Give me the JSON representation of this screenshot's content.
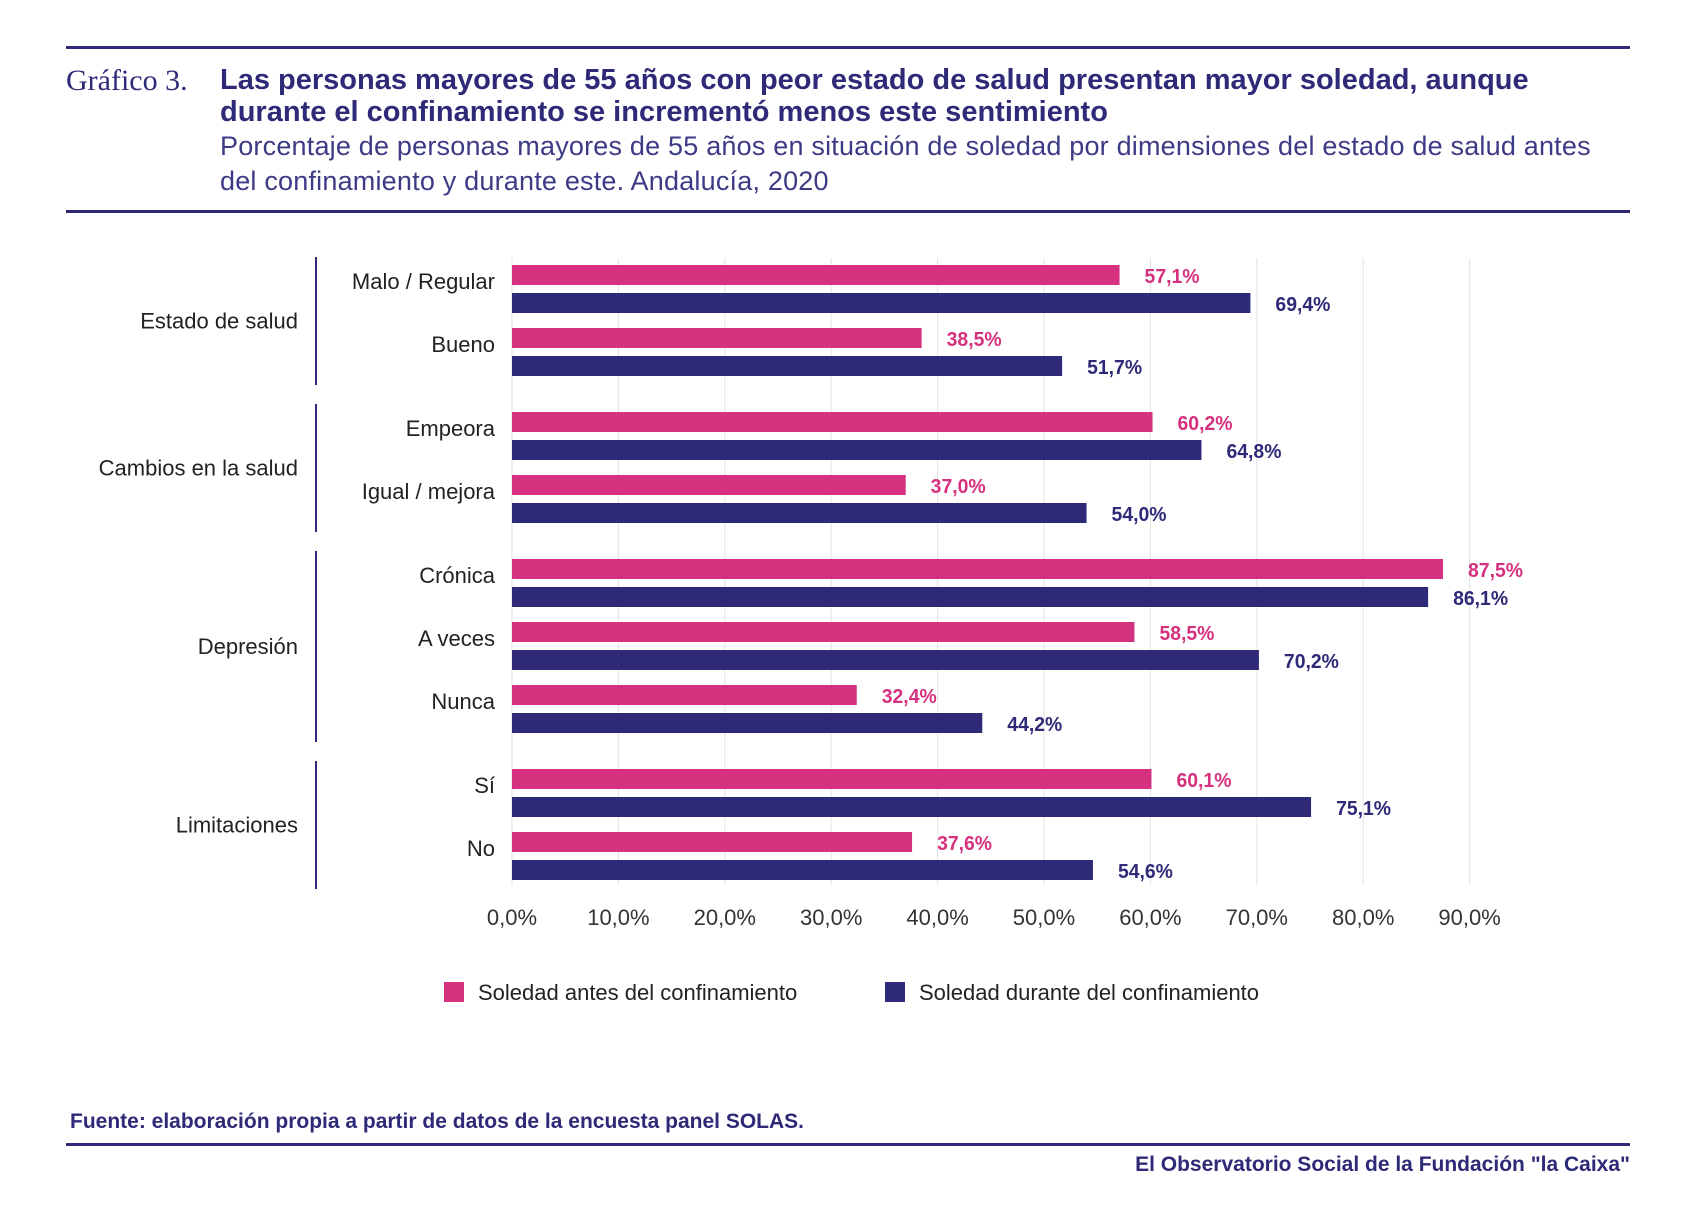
{
  "header": {
    "figure_label": "Gráfico 3.",
    "title": "Las personas mayores de 55 años con peor estado de salud presentan mayor soledad, aunque durante el confinamiento se incrementó menos este sentimiento",
    "subtitle": "Porcentaje de personas mayores de 55 años en situación de soledad por dimensiones del estado de salud antes del confinamiento y durante este. Andalucía, 2020"
  },
  "chart_data": {
    "type": "bar",
    "orientation": "horizontal",
    "xlim": [
      0,
      90
    ],
    "x_ticks": [
      "0,0%",
      "10,0%",
      "20,0%",
      "30,0%",
      "40,0%",
      "50,0%",
      "60,0%",
      "70,0%",
      "80,0%",
      "90,0%"
    ],
    "grid": true,
    "groups": [
      {
        "name": "Estado de salud",
        "categories": [
          {
            "label": "Malo / Regular",
            "before": 57.1,
            "during": 69.4
          },
          {
            "label": "Bueno",
            "before": 38.5,
            "during": 51.7
          }
        ]
      },
      {
        "name": "Cambios en la salud",
        "categories": [
          {
            "label": "Empeora",
            "before": 60.2,
            "during": 64.8
          },
          {
            "label": "Igual / mejora",
            "before": 37.0,
            "during": 54.0
          }
        ]
      },
      {
        "name": "Depresión",
        "categories": [
          {
            "label": "Crónica",
            "before": 87.5,
            "during": 86.1
          },
          {
            "label": "A veces",
            "before": 58.5,
            "during": 70.2
          },
          {
            "label": "Nunca",
            "before": 32.4,
            "during": 44.2
          }
        ]
      },
      {
        "name": "Limitaciones",
        "categories": [
          {
            "label": "Sí",
            "before": 60.1,
            "during": 75.1
          },
          {
            "label": "No",
            "before": 37.6,
            "during": 54.6
          }
        ]
      }
    ],
    "series": [
      {
        "key": "before",
        "name": "Soledad antes del confinamiento",
        "color": "#d6317f"
      },
      {
        "key": "during",
        "name": "Soledad durante del confinamiento",
        "color": "#2e2a78"
      }
    ],
    "legend_position": "bottom-center"
  },
  "footer": {
    "source": "Fuente:  elaboración propia a partir de datos de la encuesta panel SOLAS.",
    "publisher": "El Observatorio Social de la Fundación \"la Caixa\""
  }
}
